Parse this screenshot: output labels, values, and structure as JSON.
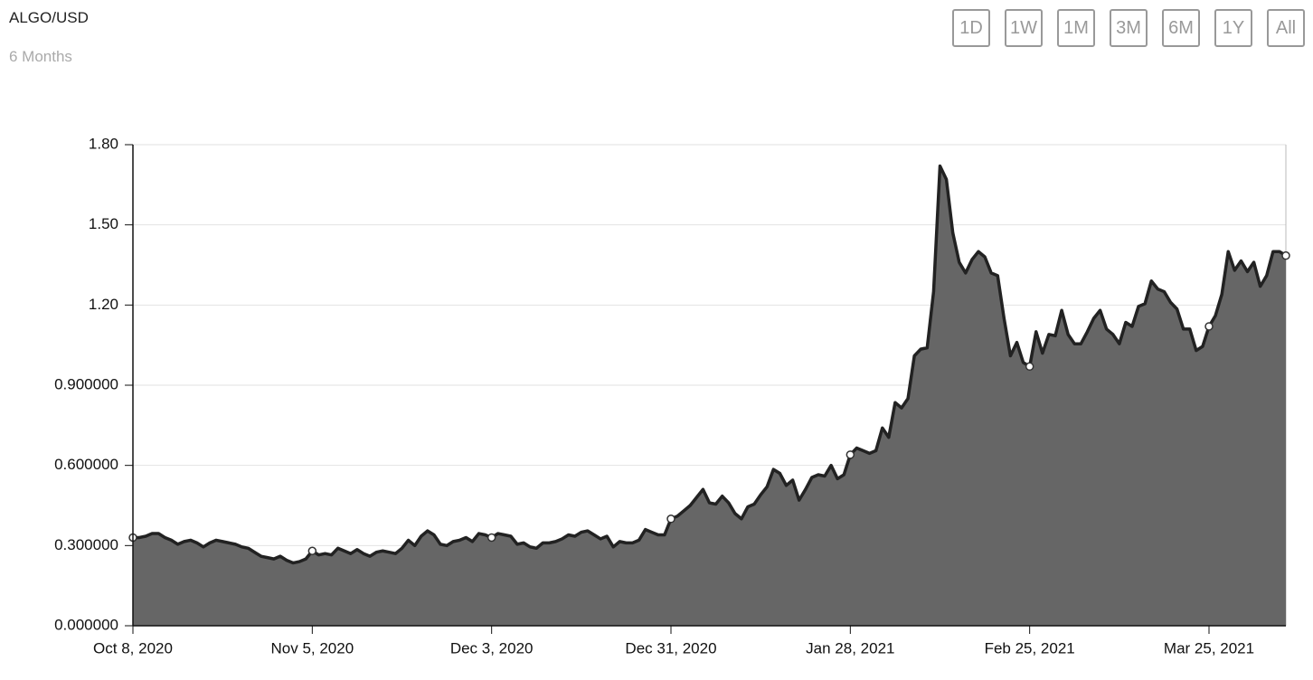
{
  "header": {
    "title": "ALGO/USD",
    "subtitle": "6 Months"
  },
  "range_buttons": [
    "1D",
    "1W",
    "1M",
    "3M",
    "6M",
    "1Y",
    "All"
  ],
  "chart_data": {
    "type": "area",
    "color": "#666666",
    "line_color": "#222222",
    "grid": true,
    "xlim": [
      "2020-10-08",
      "2021-04-06"
    ],
    "xticks": [
      {
        "value": "2020-10-08",
        "label": "Oct 8, 2020"
      },
      {
        "value": "2020-11-05",
        "label": "Nov 5, 2020"
      },
      {
        "value": "2020-12-03",
        "label": "Dec 3, 2020"
      },
      {
        "value": "2020-12-31",
        "label": "Dec 31, 2020"
      },
      {
        "value": "2021-01-28",
        "label": "Jan 28, 2021"
      },
      {
        "value": "2021-02-25",
        "label": "Feb 25, 2021"
      },
      {
        "value": "2021-03-25",
        "label": "Mar 25, 2021"
      }
    ],
    "ylim": [
      0,
      1.8
    ],
    "yticks": [
      {
        "value": 0,
        "label": "0.000000"
      },
      {
        "value": 0.3,
        "label": "0.300000"
      },
      {
        "value": 0.6,
        "label": "0.600000"
      },
      {
        "value": 0.9,
        "label": "0.900000"
      },
      {
        "value": 1.2,
        "label": "1.20"
      },
      {
        "value": 1.5,
        "label": "1.50"
      },
      {
        "value": 1.8,
        "label": "1.80"
      }
    ],
    "x": [
      "2020-10-08",
      "2020-10-09",
      "2020-10-10",
      "2020-10-11",
      "2020-10-12",
      "2020-10-13",
      "2020-10-14",
      "2020-10-15",
      "2020-10-16",
      "2020-10-17",
      "2020-10-18",
      "2020-10-19",
      "2020-10-20",
      "2020-10-21",
      "2020-10-22",
      "2020-10-23",
      "2020-10-24",
      "2020-10-25",
      "2020-10-26",
      "2020-10-27",
      "2020-10-28",
      "2020-10-29",
      "2020-10-30",
      "2020-10-31",
      "2020-11-01",
      "2020-11-02",
      "2020-11-03",
      "2020-11-04",
      "2020-11-05",
      "2020-11-06",
      "2020-11-07",
      "2020-11-08",
      "2020-11-09",
      "2020-11-10",
      "2020-11-11",
      "2020-11-12",
      "2020-11-13",
      "2020-11-14",
      "2020-11-15",
      "2020-11-16",
      "2020-11-17",
      "2020-11-18",
      "2020-11-19",
      "2020-11-20",
      "2020-11-21",
      "2020-11-22",
      "2020-11-23",
      "2020-11-24",
      "2020-11-25",
      "2020-11-26",
      "2020-11-27",
      "2020-11-28",
      "2020-11-29",
      "2020-11-30",
      "2020-12-01",
      "2020-12-02",
      "2020-12-03",
      "2020-12-04",
      "2020-12-05",
      "2020-12-06",
      "2020-12-07",
      "2020-12-08",
      "2020-12-09",
      "2020-12-10",
      "2020-12-11",
      "2020-12-12",
      "2020-12-13",
      "2020-12-14",
      "2020-12-15",
      "2020-12-16",
      "2020-12-17",
      "2020-12-18",
      "2020-12-19",
      "2020-12-20",
      "2020-12-21",
      "2020-12-22",
      "2020-12-23",
      "2020-12-24",
      "2020-12-25",
      "2020-12-26",
      "2020-12-27",
      "2020-12-28",
      "2020-12-29",
      "2020-12-30",
      "2020-12-31",
      "2021-01-01",
      "2021-01-02",
      "2021-01-03",
      "2021-01-04",
      "2021-01-05",
      "2021-01-06",
      "2021-01-07",
      "2021-01-08",
      "2021-01-09",
      "2021-01-10",
      "2021-01-11",
      "2021-01-12",
      "2021-01-13",
      "2021-01-14",
      "2021-01-15",
      "2021-01-16",
      "2021-01-17",
      "2021-01-18",
      "2021-01-19",
      "2021-01-20",
      "2021-01-21",
      "2021-01-22",
      "2021-01-23",
      "2021-01-24",
      "2021-01-25",
      "2021-01-26",
      "2021-01-27",
      "2021-01-28",
      "2021-01-29",
      "2021-01-30",
      "2021-01-31",
      "2021-02-01",
      "2021-02-02",
      "2021-02-03",
      "2021-02-04",
      "2021-02-05",
      "2021-02-06",
      "2021-02-07",
      "2021-02-08",
      "2021-02-09",
      "2021-02-10",
      "2021-02-11",
      "2021-02-12",
      "2021-02-13",
      "2021-02-14",
      "2021-02-15",
      "2021-02-16",
      "2021-02-17",
      "2021-02-18",
      "2021-02-19",
      "2021-02-20",
      "2021-02-21",
      "2021-02-22",
      "2021-02-23",
      "2021-02-24",
      "2021-02-25",
      "2021-02-26",
      "2021-02-27",
      "2021-02-28",
      "2021-03-01",
      "2021-03-02",
      "2021-03-03",
      "2021-03-04",
      "2021-03-05",
      "2021-03-06",
      "2021-03-07",
      "2021-03-08",
      "2021-03-09",
      "2021-03-10",
      "2021-03-11",
      "2021-03-12",
      "2021-03-13",
      "2021-03-14",
      "2021-03-15",
      "2021-03-16",
      "2021-03-17",
      "2021-03-18",
      "2021-03-19",
      "2021-03-20",
      "2021-03-21",
      "2021-03-22",
      "2021-03-23",
      "2021-03-24",
      "2021-03-25",
      "2021-03-26",
      "2021-03-27",
      "2021-03-28",
      "2021-03-29",
      "2021-03-30",
      "2021-03-31",
      "2021-04-01",
      "2021-04-02",
      "2021-04-03",
      "2021-04-04",
      "2021-04-05",
      "2021-04-06"
    ],
    "values": [
      0.33,
      0.33,
      0.335,
      0.345,
      0.345,
      0.33,
      0.32,
      0.305,
      0.315,
      0.32,
      0.31,
      0.295,
      0.31,
      0.32,
      0.315,
      0.31,
      0.305,
      0.295,
      0.29,
      0.275,
      0.26,
      0.255,
      0.25,
      0.26,
      0.245,
      0.235,
      0.24,
      0.25,
      0.28,
      0.265,
      0.27,
      0.265,
      0.29,
      0.28,
      0.27,
      0.285,
      0.27,
      0.26,
      0.275,
      0.28,
      0.275,
      0.27,
      0.29,
      0.32,
      0.3,
      0.335,
      0.355,
      0.34,
      0.305,
      0.3,
      0.315,
      0.32,
      0.33,
      0.315,
      0.345,
      0.34,
      0.33,
      0.345,
      0.34,
      0.335,
      0.305,
      0.31,
      0.295,
      0.29,
      0.31,
      0.31,
      0.315,
      0.325,
      0.34,
      0.335,
      0.35,
      0.355,
      0.34,
      0.325,
      0.335,
      0.295,
      0.315,
      0.31,
      0.31,
      0.32,
      0.36,
      0.35,
      0.34,
      0.34,
      0.4,
      0.41,
      0.43,
      0.45,
      0.48,
      0.51,
      0.46,
      0.455,
      0.485,
      0.46,
      0.42,
      0.4,
      0.445,
      0.455,
      0.49,
      0.52,
      0.585,
      0.57,
      0.525,
      0.545,
      0.47,
      0.51,
      0.555,
      0.565,
      0.56,
      0.6,
      0.55,
      0.565,
      0.64,
      0.665,
      0.655,
      0.645,
      0.655,
      0.74,
      0.705,
      0.835,
      0.815,
      0.85,
      1.01,
      1.035,
      1.04,
      1.25,
      1.72,
      1.67,
      1.47,
      1.36,
      1.32,
      1.37,
      1.4,
      1.38,
      1.32,
      1.31,
      1.15,
      1.01,
      1.06,
      0.985,
      0.97,
      1.1,
      1.02,
      1.09,
      1.085,
      1.18,
      1.09,
      1.055,
      1.055,
      1.1,
      1.15,
      1.18,
      1.11,
      1.09,
      1.055,
      1.135,
      1.12,
      1.195,
      1.205,
      1.29,
      1.26,
      1.25,
      1.21,
      1.185,
      1.11,
      1.11,
      1.03,
      1.045,
      1.12,
      1.16,
      1.24,
      1.4,
      1.33,
      1.365,
      1.325,
      1.36,
      1.27,
      1.31,
      1.4,
      1.4,
      1.385
    ]
  }
}
